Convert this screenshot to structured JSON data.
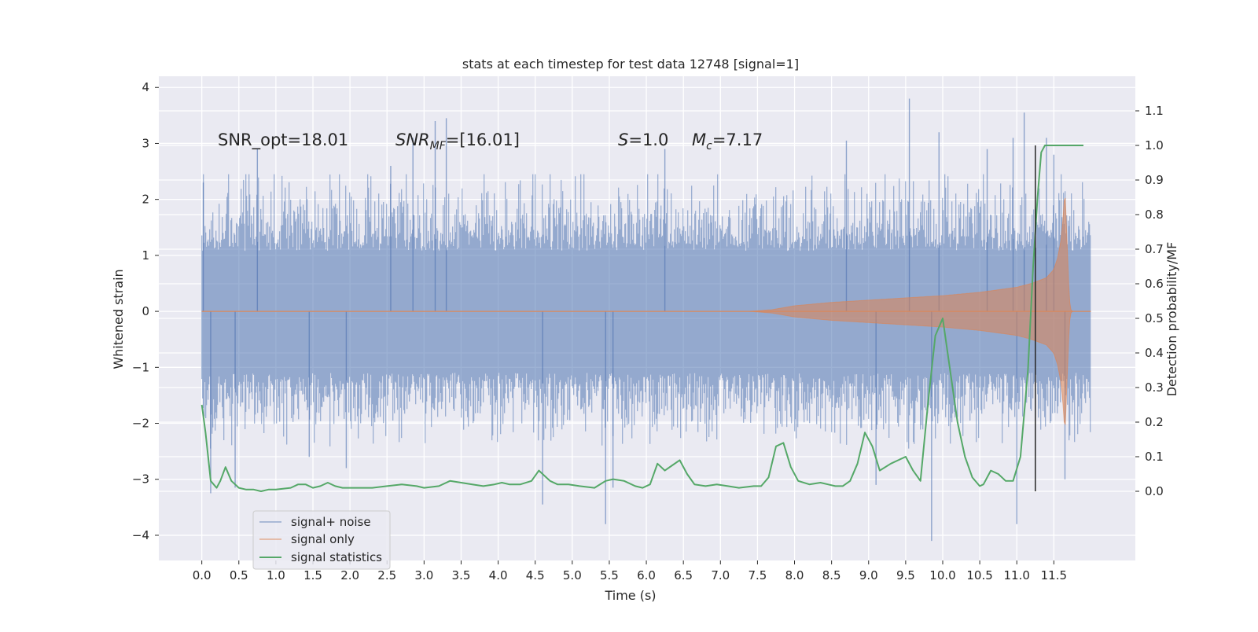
{
  "chart_data": {
    "type": "line",
    "title": "stats at each timestep for test data 12748 [signal=1]",
    "xlabel": "Time (s)",
    "ylabel": "Whitened strain",
    "ylabel_right": "Detection probability/MF",
    "xlim": [
      -0.58,
      12.6
    ],
    "ylim": [
      -4.45,
      4.2
    ],
    "ylim_right": [
      -0.2,
      1.2
    ],
    "x_ticks": [
      0.0,
      0.5,
      1.0,
      1.5,
      2.0,
      2.5,
      3.0,
      3.5,
      4.0,
      4.5,
      5.0,
      5.5,
      6.0,
      6.5,
      7.0,
      7.5,
      8.0,
      8.5,
      9.0,
      9.5,
      10.0,
      10.5,
      11.0,
      11.5
    ],
    "x_tick_labels": [
      "0.0",
      "0.5",
      "1.0",
      "1.5",
      "2.0",
      "2.5",
      "3.0",
      "3.5",
      "4.0",
      "4.5",
      "5.0",
      "5.5",
      "6.0",
      "6.5",
      "7.0",
      "7.5",
      "8.0",
      "8.5",
      "9.0",
      "9.5",
      "10.0",
      "10.5",
      "11.0",
      "11.5"
    ],
    "y_ticks": [
      -4,
      -3,
      -2,
      -1,
      0,
      1,
      2,
      3,
      4
    ],
    "y_tick_labels": [
      "−4",
      "−3",
      "−2",
      "−1",
      "0",
      "1",
      "2",
      "3",
      "4"
    ],
    "y_right_ticks": [
      0.0,
      0.1,
      0.2,
      0.3,
      0.4,
      0.5,
      0.6,
      0.7,
      0.8,
      0.9,
      1.0,
      1.1
    ],
    "y_right_tick_labels": [
      "0.0",
      "0.1",
      "0.2",
      "0.3",
      "0.4",
      "0.5",
      "0.6",
      "0.7",
      "0.8",
      "0.9",
      "1.0",
      "1.1"
    ],
    "grid": true,
    "legend_position": "lower-left",
    "annotations": [
      {
        "label": "SNR_opt",
        "text": "SNR_opt=18.01",
        "value": 18.01
      },
      {
        "label": "SNR_MF",
        "text": "=[16.01]",
        "value": 16.01
      },
      {
        "label": "S",
        "text": "=1.0",
        "value": 1.0
      },
      {
        "label": "M_c",
        "text": "=7.17",
        "value": 7.17
      }
    ],
    "series": [
      {
        "name": "signal+ noise",
        "axis": "left",
        "style": "noise",
        "color": "#4c72b0",
        "t_range": [
          0.0,
          12.0
        ],
        "envelope_typical": [
          -1.4,
          1.7
        ],
        "extremes": [
          {
            "x": 0.02,
            "y": 2.3
          },
          {
            "x": 0.12,
            "y": -3.25
          },
          {
            "x": 0.45,
            "y": -3.15
          },
          {
            "x": 0.75,
            "y": 2.9
          },
          {
            "x": 1.45,
            "y": -2.6
          },
          {
            "x": 1.95,
            "y": -2.8
          },
          {
            "x": 2.55,
            "y": 2.6
          },
          {
            "x": 2.85,
            "y": 3.1
          },
          {
            "x": 3.15,
            "y": 3.4
          },
          {
            "x": 3.3,
            "y": 3.45
          },
          {
            "x": 4.6,
            "y": -3.45
          },
          {
            "x": 5.45,
            "y": -3.8
          },
          {
            "x": 5.55,
            "y": -3.15
          },
          {
            "x": 6.25,
            "y": 2.9
          },
          {
            "x": 8.7,
            "y": 3.05
          },
          {
            "x": 9.1,
            "y": -3.1
          },
          {
            "x": 9.55,
            "y": 3.8
          },
          {
            "x": 9.85,
            "y": -4.1
          },
          {
            "x": 9.95,
            "y": 3.2
          },
          {
            "x": 10.6,
            "y": 2.9
          },
          {
            "x": 10.95,
            "y": 3.1
          },
          {
            "x": 11.0,
            "y": -3.8
          },
          {
            "x": 11.1,
            "y": 3.55
          },
          {
            "x": 11.4,
            "y": 3.1
          },
          {
            "x": 11.5,
            "y": 2.8
          },
          {
            "x": 11.65,
            "y": -3.0
          }
        ]
      },
      {
        "name": "signal only",
        "axis": "left",
        "style": "chirp",
        "color": "#dd8452",
        "envelope": {
          "x": [
            0.0,
            7.4,
            7.7,
            8.0,
            8.5,
            9.0,
            9.5,
            10.0,
            10.5,
            11.0,
            11.2,
            11.4,
            11.5,
            11.55,
            11.6,
            11.63,
            11.65,
            11.67,
            11.7,
            11.72,
            11.75,
            12.0
          ],
          "amplitude": [
            0.0,
            0.0,
            0.03,
            0.1,
            0.16,
            0.2,
            0.24,
            0.28,
            0.34,
            0.43,
            0.5,
            0.6,
            0.75,
            0.95,
            1.3,
            1.75,
            2.2,
            1.5,
            0.5,
            0.05,
            0.0,
            0.0
          ]
        }
      },
      {
        "name": "signal statistics",
        "axis": "right",
        "style": "line",
        "color": "#55a868",
        "x": [
          0.0,
          0.05,
          0.12,
          0.2,
          0.25,
          0.32,
          0.4,
          0.5,
          0.6,
          0.7,
          0.8,
          0.9,
          1.0,
          1.2,
          1.3,
          1.4,
          1.5,
          1.6,
          1.7,
          1.8,
          1.9,
          2.0,
          2.1,
          2.3,
          2.5,
          2.7,
          2.9,
          3.0,
          3.2,
          3.35,
          3.5,
          3.65,
          3.8,
          3.95,
          4.05,
          4.15,
          4.3,
          4.45,
          4.55,
          4.6,
          4.7,
          4.8,
          4.95,
          5.1,
          5.3,
          5.45,
          5.55,
          5.7,
          5.85,
          5.95,
          6.05,
          6.15,
          6.25,
          6.35,
          6.45,
          6.55,
          6.65,
          6.8,
          6.95,
          7.1,
          7.25,
          7.45,
          7.55,
          7.65,
          7.75,
          7.85,
          7.95,
          8.05,
          8.2,
          8.35,
          8.45,
          8.55,
          8.65,
          8.75,
          8.85,
          8.95,
          9.05,
          9.15,
          9.3,
          9.4,
          9.5,
          9.6,
          9.7,
          9.8,
          9.9,
          10.0,
          10.1,
          10.2,
          10.3,
          10.4,
          10.5,
          10.55,
          10.65,
          10.75,
          10.85,
          10.95,
          11.05,
          11.15,
          11.22,
          11.28,
          11.33,
          11.38,
          11.45,
          11.55,
          11.7,
          11.9
        ],
        "y": [
          0.25,
          0.17,
          0.03,
          0.01,
          0.03,
          0.07,
          0.03,
          0.01,
          0.005,
          0.005,
          0.0,
          0.005,
          0.005,
          0.01,
          0.02,
          0.02,
          0.01,
          0.015,
          0.025,
          0.015,
          0.01,
          0.01,
          0.01,
          0.01,
          0.015,
          0.02,
          0.015,
          0.01,
          0.015,
          0.03,
          0.025,
          0.02,
          0.015,
          0.02,
          0.025,
          0.02,
          0.02,
          0.03,
          0.06,
          0.05,
          0.03,
          0.02,
          0.02,
          0.015,
          0.01,
          0.03,
          0.035,
          0.03,
          0.015,
          0.01,
          0.02,
          0.08,
          0.06,
          0.075,
          0.09,
          0.05,
          0.02,
          0.015,
          0.02,
          0.015,
          0.01,
          0.015,
          0.015,
          0.04,
          0.13,
          0.14,
          0.07,
          0.03,
          0.02,
          0.025,
          0.02,
          0.015,
          0.015,
          0.03,
          0.08,
          0.17,
          0.13,
          0.06,
          0.08,
          0.09,
          0.1,
          0.06,
          0.03,
          0.25,
          0.45,
          0.5,
          0.35,
          0.2,
          0.1,
          0.04,
          0.015,
          0.02,
          0.06,
          0.05,
          0.03,
          0.03,
          0.1,
          0.35,
          0.65,
          0.85,
          0.98,
          1.0,
          1.0,
          1.0,
          1.0,
          1.0
        ]
      }
    ],
    "vlines": [
      {
        "x": 11.25,
        "ymin": 0.0,
        "ymax": 1.0,
        "axis": "right",
        "color": "#262626"
      }
    ]
  }
}
